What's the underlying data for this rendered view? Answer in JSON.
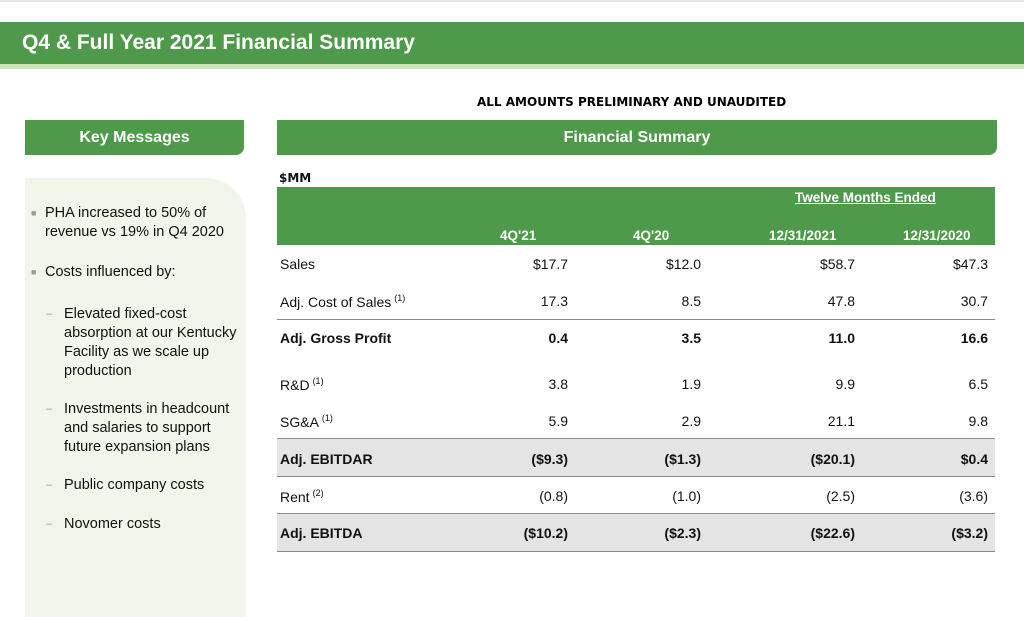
{
  "header": {
    "title": "Q4 & Full Year 2021 Financial Summary"
  },
  "note": "ALL AMOUNTS PRELIMINARY AND UNAUDITED",
  "key_messages": {
    "title": "Key Messages",
    "bullets": [
      "PHA increased to 50% of revenue vs 19% in Q4 2020",
      "Costs influenced by:"
    ],
    "sub_bullets": [
      "Elevated fixed-cost absorption at our Kentucky Facility as we scale up production",
      "Investments in headcount and salaries to support future expansion plans",
      "Public company costs",
      "Novomer costs"
    ]
  },
  "financial": {
    "title": "Financial Summary",
    "unit": "$MM",
    "group_header": "Twelve Months Ended",
    "columns": [
      "4Q'21",
      "4Q'20",
      "12/31/2021",
      "12/31/2020"
    ],
    "rows": [
      {
        "label": "Sales",
        "note": "",
        "values": [
          "$17.7",
          "$12.0",
          "$58.7",
          "$47.3"
        ],
        "bold": false
      },
      {
        "label": "Adj. Cost of Sales",
        "note": "(1)",
        "values": [
          "17.3",
          "8.5",
          "47.8",
          "30.7"
        ],
        "bold": false
      },
      {
        "label": "Adj. Gross Profit",
        "note": "",
        "values": [
          "0.4",
          "3.5",
          "11.0",
          "16.6"
        ],
        "bold": true
      },
      {
        "label": "R&D",
        "note": "(1)",
        "values": [
          "3.8",
          "1.9",
          "9.9",
          "6.5"
        ],
        "bold": false
      },
      {
        "label": "SG&A",
        "note": "(1)",
        "values": [
          "5.9",
          "2.9",
          "21.1",
          "9.8"
        ],
        "bold": false
      },
      {
        "label": "Adj. EBITDAR",
        "note": "",
        "values": [
          "($9.3)",
          "($1.3)",
          "($20.1)",
          "$0.4"
        ],
        "bold": true
      },
      {
        "label": "Rent",
        "note": "(2)",
        "values": [
          "(0.8)",
          "(1.0)",
          "(2.5)",
          "(3.6)"
        ],
        "bold": false
      },
      {
        "label": "Adj. EBITDA",
        "note": "",
        "values": [
          "($10.2)",
          "($2.3)",
          "($22.6)",
          "($3.2)"
        ],
        "bold": true
      }
    ]
  }
}
